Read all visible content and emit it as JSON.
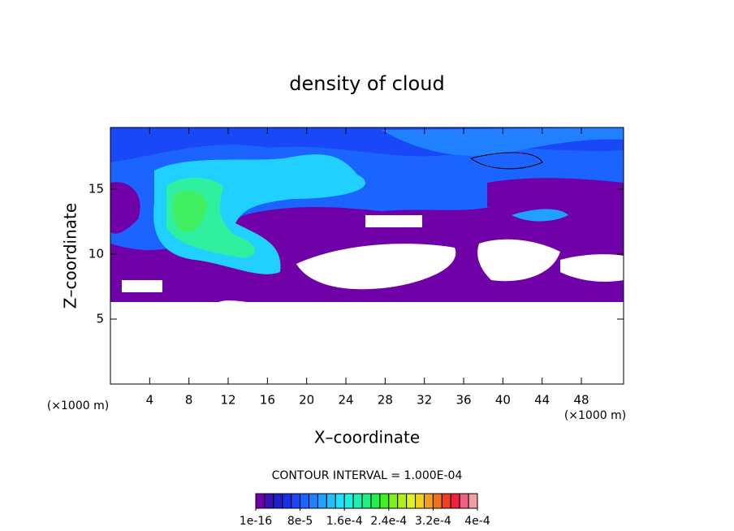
{
  "chart_data": {
    "type": "contour",
    "title": "density of cloud",
    "x_label": "X–coordinate",
    "y_label": "Z–coordinate",
    "x_unit": "(×1000 m)",
    "y_unit": "(×1000 m)",
    "contour_interval": "CONTOUR INTERVAL = 1.000E-04",
    "xlim": [
      0,
      52.3
    ],
    "ylim": [
      0,
      19.75
    ],
    "xticks": [
      4,
      8,
      12,
      16,
      20,
      24,
      28,
      32,
      36,
      40,
      44,
      48
    ],
    "yticks": [
      5,
      10,
      15
    ],
    "colorbar": {
      "lim": [
        0,
        0.0004
      ],
      "colors": [
        "#7000a8",
        "#3a10b8",
        "#2020d0",
        "#1830e8",
        "#1848f8",
        "#1c64ff",
        "#2080ff",
        "#20a0ff",
        "#20c0ff",
        "#20e0ff",
        "#20f0e0",
        "#20f0b0",
        "#20f080",
        "#20f050",
        "#40f020",
        "#80f020",
        "#b0f020",
        "#e0f020",
        "#f0d020",
        "#f0a020",
        "#f07020",
        "#f04020",
        "#f02040",
        "#f06080",
        "#f0a0a0"
      ],
      "ticks": [
        {
          "value": 1e-16,
          "label": "1e-16"
        },
        {
          "value": 8e-05,
          "label": "8e-5"
        },
        {
          "value": 0.00016,
          "label": "1.6e-4"
        },
        {
          "value": 0.00024,
          "label": "2.4e-4"
        },
        {
          "value": 0.00032,
          "label": "3.2e-4"
        },
        {
          "value": 0.0004,
          "label": "4e-4"
        }
      ]
    }
  }
}
